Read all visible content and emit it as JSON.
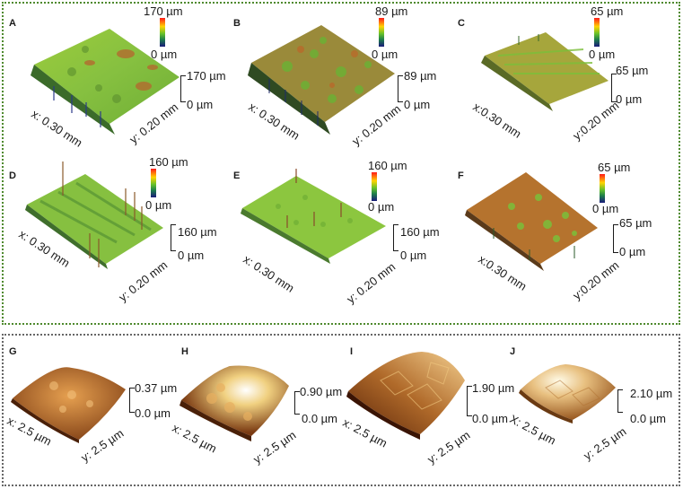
{
  "panels": {
    "A": {
      "letter": "A",
      "cbar_max": "170 µm",
      "cbar_min": "0 µm",
      "z_max": "170 µm",
      "z_min": "0 µm",
      "x_label": "x: 0.30 mm",
      "y_label": "y: 0.20 mm"
    },
    "B": {
      "letter": "B",
      "cbar_max": "89 µm",
      "cbar_min": "0 µm",
      "z_max": "89 µm",
      "z_min": "0 µm",
      "x_label": "x: 0.30 mm",
      "y_label": "y: 0.20 mm"
    },
    "C": {
      "letter": "C",
      "cbar_max": "65 µm",
      "cbar_min": "0 µm",
      "z_max": "65 µm",
      "z_min": "0 µm",
      "x_label": "x:0.30 mm",
      "y_label": "y:0.20 mm"
    },
    "D": {
      "letter": "D",
      "cbar_max": "160 µm",
      "cbar_min": "0 µm",
      "z_max": "160 µm",
      "z_min": "0 µm",
      "x_label": "x: 0.30 mm",
      "y_label": "y: 0.20 mm"
    },
    "E": {
      "letter": "E",
      "cbar_max": "160 µm",
      "cbar_min": "0 µm",
      "z_max": "160 µm",
      "z_min": "0 µm",
      "x_label": "x: 0.30 mm",
      "y_label": "y: 0.20 mm"
    },
    "F": {
      "letter": "F",
      "cbar_max": "65 µm",
      "cbar_min": "0 µm",
      "z_max": "65 µm",
      "z_min": "0 µm",
      "x_label": "x:0.30 mm",
      "y_label": "y:0.20 mm"
    },
    "G": {
      "letter": "G",
      "z_max": "0.37 µm",
      "z_min": "0.0 µm",
      "x_label": "x: 2.5  µm",
      "y_label": "y: 2.5  µm"
    },
    "H": {
      "letter": "H",
      "z_max": "0.90 µm",
      "z_min": "0.0 µm",
      "x_label": "x: 2.5  µm",
      "y_label": "y: 2.5  µm"
    },
    "I": {
      "letter": "I",
      "z_max": "1.90 µm",
      "z_min": "0.0 µm",
      "x_label": "x: 2.5  µm",
      "y_label": "y: 2.5  µm"
    },
    "J": {
      "letter": "J",
      "z_max": "2.10 µm",
      "z_min": "0.0 µm",
      "x_label": "X: 2.5  µm",
      "y_label": "y: 2.5  µm"
    }
  },
  "colors": {
    "top_frame": "#4f8a2e",
    "bottom_frame": "#666666",
    "optical_surface": "#8cc63f",
    "afm_surface": "#c98a3e"
  }
}
